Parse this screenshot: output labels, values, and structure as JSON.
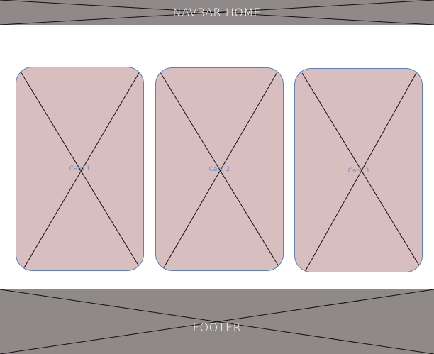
{
  "navbar": {
    "label": "NAVBAR HOME"
  },
  "cards": [
    {
      "label": "Card 1"
    },
    {
      "label": "Card 2"
    },
    {
      "label": "Card 3"
    }
  ],
  "footer": {
    "label": "FOOTER"
  },
  "colors": {
    "band": "#8f8a89",
    "card_fill": "#d8bebe",
    "card_border": "#5b7fc0",
    "placeholder_lines": "#111111"
  }
}
